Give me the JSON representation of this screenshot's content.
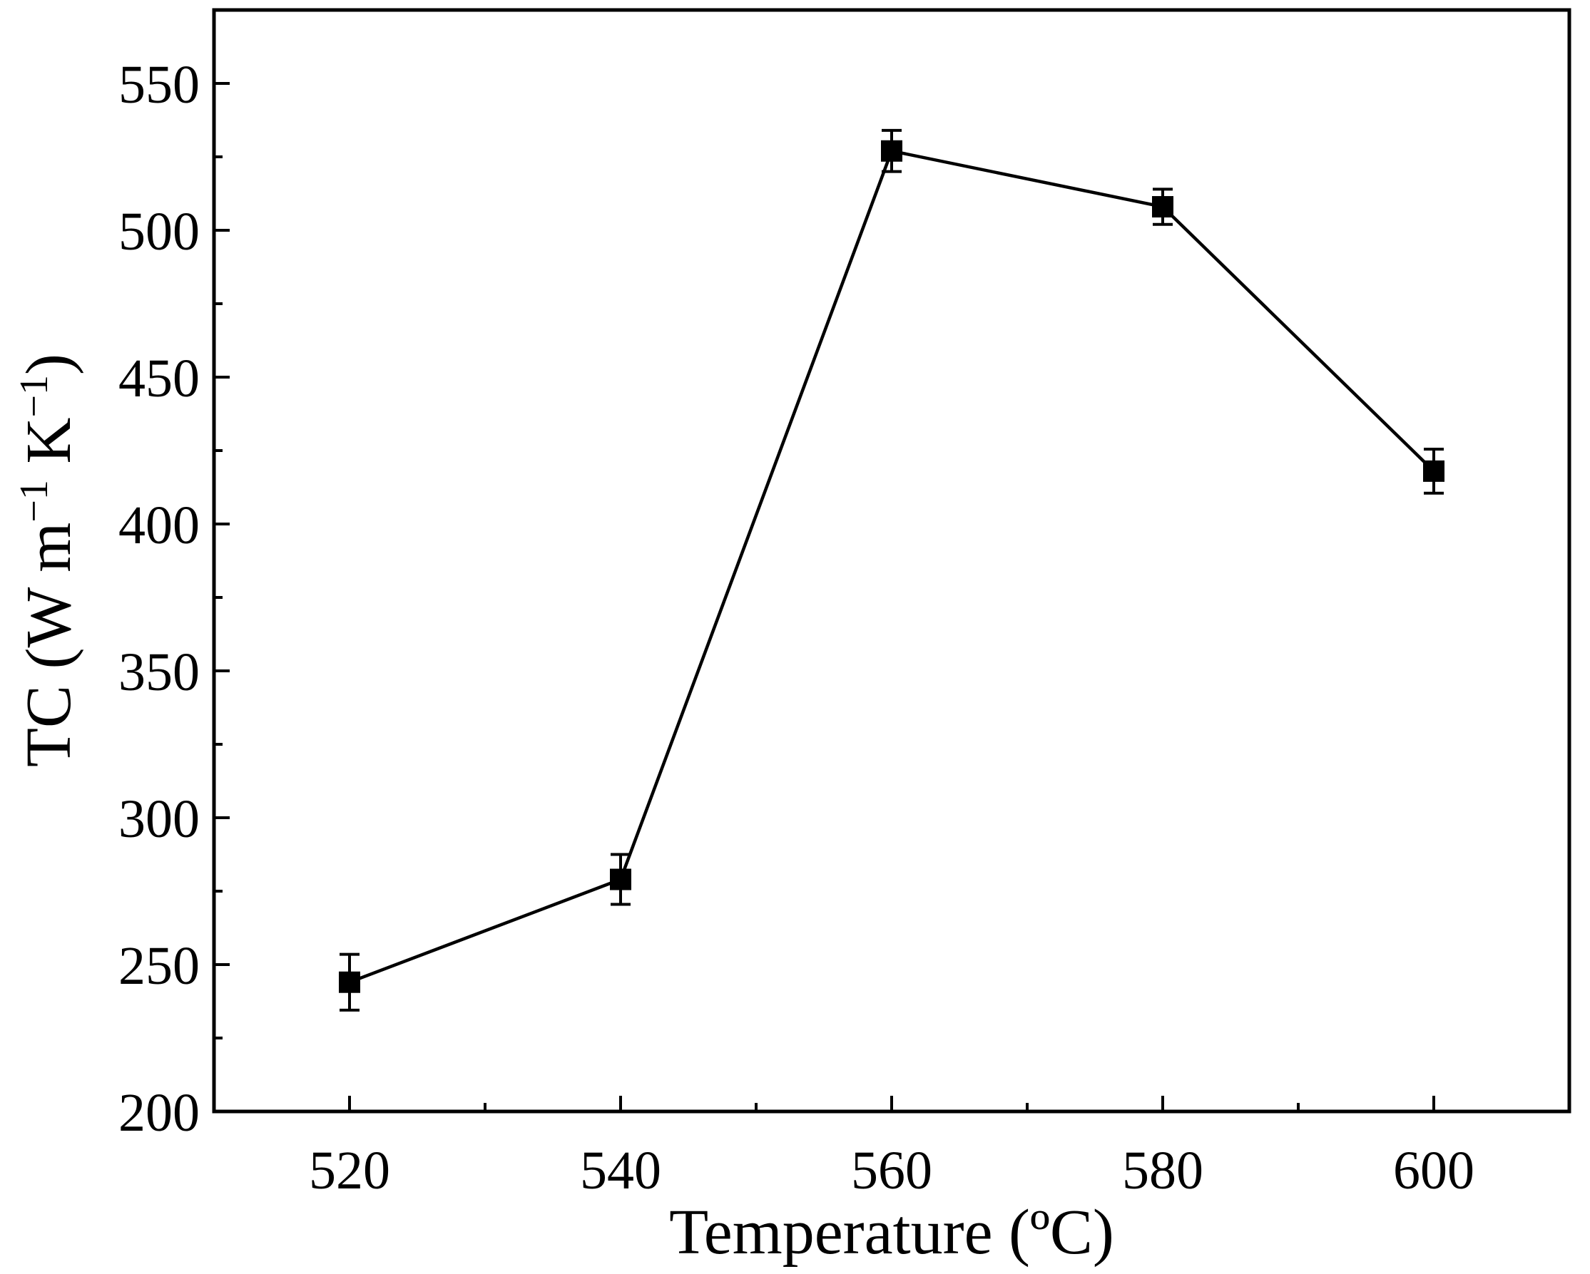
{
  "chart_data": {
    "type": "line",
    "title": "",
    "xlabel": "Temperature (ºC)",
    "ylabel": "TC (W m",
    "ylabel_sup1": "−1",
    "ylabel_mid": " K",
    "ylabel_sup2": "−1",
    "ylabel_end": ")",
    "xlim": [
      510,
      610
    ],
    "ylim": [
      200,
      575
    ],
    "x_ticks": [
      520,
      540,
      560,
      580,
      600
    ],
    "x_minor_ticks": [
      530,
      550,
      570,
      590
    ],
    "y_ticks": [
      200,
      250,
      300,
      350,
      400,
      450,
      500,
      550
    ],
    "y_minor_ticks": [
      225,
      275,
      325,
      375,
      425,
      475,
      525
    ],
    "grid": false,
    "legend": "none",
    "series": [
      {
        "marker": "filled-square",
        "color": "#000000",
        "x": [
          520,
          540,
          560,
          580,
          600
        ],
        "y": [
          244,
          279,
          527,
          508,
          418
        ],
        "error": [
          9.5,
          8.5,
          7,
          6,
          7.5
        ]
      }
    ]
  }
}
